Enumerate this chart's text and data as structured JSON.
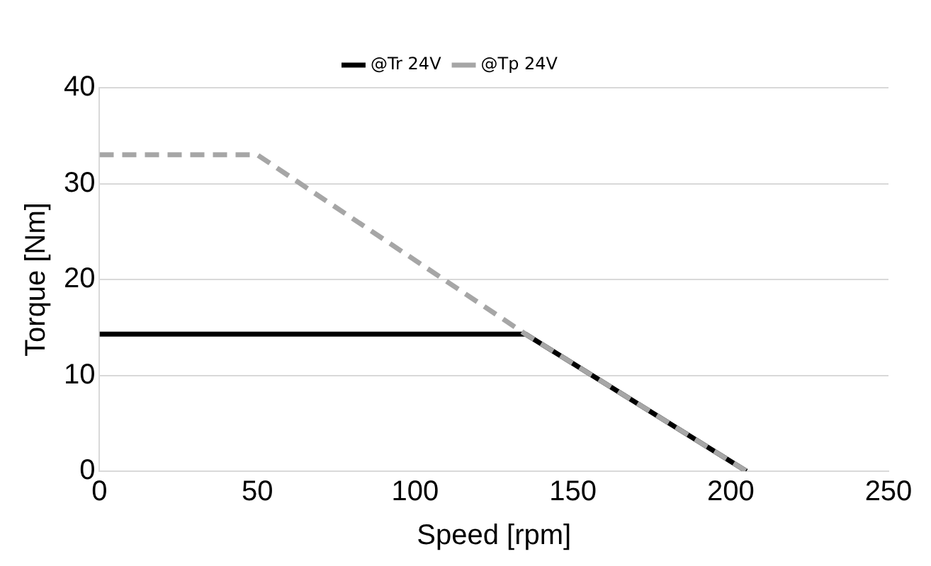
{
  "chart_data": {
    "type": "line",
    "xlabel": "Speed [rpm]",
    "ylabel": "Torque [Nm]",
    "series": [
      {
        "name": "@Tr 24V",
        "color": "#000000",
        "x": [
          0,
          135,
          205
        ],
        "values": [
          14.3,
          14.3,
          0
        ],
        "line_style": "solid"
      },
      {
        "name": "@Tp 24V",
        "color": "#a6a6a6",
        "x": [
          0,
          50,
          135,
          205
        ],
        "values": [
          33,
          33,
          14.3,
          0
        ],
        "line_style": "dashed"
      }
    ],
    "xlim": [
      0,
      250
    ],
    "xticks": [
      0,
      50,
      100,
      150,
      200,
      250
    ],
    "ylim": [
      0,
      40
    ],
    "yticks": [
      0,
      10,
      20,
      30,
      40
    ],
    "grid": "y",
    "legend": "top",
    "marker": "none"
  }
}
